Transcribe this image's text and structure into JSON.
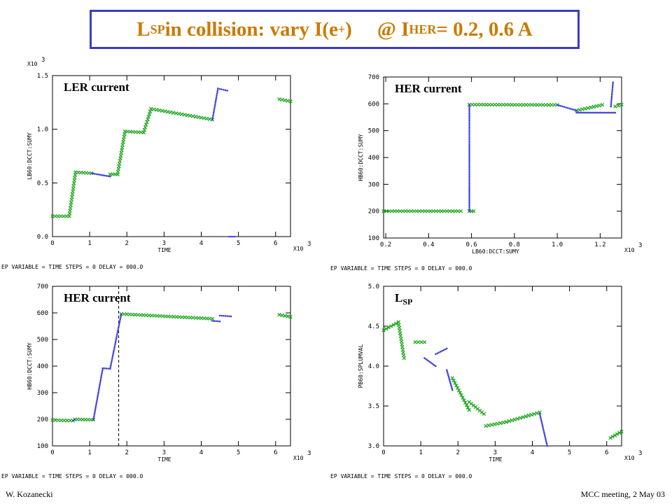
{
  "title": {
    "main": "L",
    "sub1": "SP",
    "mid": " in collision: vary I(e",
    "sup": "+",
    "close": ")",
    "at": "@ I",
    "sub2": "HER",
    "tail": " = 0.2, 0.6 A"
  },
  "footer": {
    "left": "W. Kozanecki",
    "right": "MCC meeting, 2 May 03"
  },
  "chart_data": [
    {
      "type": "scatter",
      "title": "LER current",
      "xlabel": "TIME",
      "ylabel": "LB60:DCCT:SUMY",
      "x_multiplier": "X10",
      "x_exp": "3",
      "y_multiplier": "X10",
      "y_exp": "3",
      "xlim": [
        0,
        6.4
      ],
      "ylim": [
        0,
        1.5
      ],
      "xticks": [
        0,
        1,
        2,
        3,
        4,
        5,
        6
      ],
      "yticks": [
        0.0,
        0.5,
        1.0,
        1.5
      ],
      "ytick_labels": [
        "0.0",
        "0.5",
        "1.0",
        "1.5"
      ],
      "footer_text": "EP VARIABLE = TIME STEPS = 0 DELAY = 000.0",
      "series": [
        {
          "color": "#22a822",
          "segments": [
            [
              [
                0.0,
                0.19
              ],
              [
                0.45,
                0.19
              ]
            ],
            [
              [
                0.45,
                0.19
              ],
              [
                0.62,
                0.6
              ]
            ],
            [
              [
                0.62,
                0.6
              ],
              [
                1.05,
                0.59
              ]
            ],
            [
              [
                1.55,
                0.58
              ],
              [
                1.75,
                0.58
              ]
            ],
            [
              [
                1.75,
                0.58
              ],
              [
                1.95,
                0.98
              ]
            ],
            [
              [
                1.95,
                0.98
              ],
              [
                2.45,
                0.97
              ]
            ],
            [
              [
                2.45,
                0.97
              ],
              [
                2.65,
                1.19
              ]
            ],
            [
              [
                2.65,
                1.19
              ],
              [
                4.3,
                1.09
              ]
            ],
            [
              [
                6.1,
                1.28
              ],
              [
                6.4,
                1.26
              ]
            ]
          ]
        },
        {
          "color": "#4040e0",
          "segments": [
            [
              [
                1.05,
                0.59
              ],
              [
                1.55,
                0.56
              ]
            ],
            [
              [
                4.3,
                1.09
              ],
              [
                4.45,
                1.38
              ]
            ],
            [
              [
                4.45,
                1.38
              ],
              [
                4.7,
                1.36
              ]
            ],
            [
              [
                4.75,
                0.0
              ],
              [
                4.9,
                0.0
              ]
            ]
          ]
        }
      ]
    },
    {
      "type": "scatter",
      "title": "HER current",
      "xlabel": "LB60:DCCT:SUMY",
      "ylabel": "HB60:DCCT:SUMY",
      "x_multiplier": "X10",
      "x_exp": "3",
      "xlim": [
        0.19,
        1.3
      ],
      "ylim": [
        100,
        700
      ],
      "xticks": [
        0.2,
        0.4,
        0.6,
        0.8,
        1.0,
        1.2
      ],
      "yticks": [
        100,
        200,
        300,
        400,
        500,
        600,
        700
      ],
      "xtick_labels": [
        "0.2",
        "0.4",
        "0.6",
        "0.8",
        "1.0",
        "1.2"
      ],
      "footer_text": "EP VARIABLE = TIME STEPS = 0 DELAY = 000.0",
      "series": [
        {
          "color": "#22a822",
          "segments": [
            [
              [
                0.19,
                200
              ],
              [
                0.55,
                200
              ]
            ],
            [
              [
                0.59,
                200
              ],
              [
                0.61,
                200
              ]
            ],
            [
              [
                0.59,
                597
              ],
              [
                0.96,
                596
              ]
            ],
            [
              [
                0.96,
                596
              ],
              [
                1.0,
                596
              ]
            ],
            [
              [
                1.09,
                575
              ],
              [
                1.21,
                596
              ]
            ],
            [
              [
                1.27,
                590
              ],
              [
                1.3,
                597
              ]
            ]
          ]
        },
        {
          "color": "#4040e0",
          "segments": [
            [
              [
                0.59,
                200
              ],
              [
                0.59,
                597
              ]
            ],
            [
              [
                1.0,
                596
              ],
              [
                1.09,
                575
              ]
            ],
            [
              [
                1.09,
                567
              ],
              [
                1.27,
                567
              ]
            ],
            [
              [
                1.25,
                590
              ],
              [
                1.26,
                680
              ]
            ]
          ]
        }
      ]
    },
    {
      "type": "scatter",
      "title": "HER current",
      "xlabel": "TIME",
      "ylabel": "HB60:DCCT:SUMY",
      "x_multiplier": "X10",
      "x_exp": "3",
      "xlim": [
        0,
        6.4
      ],
      "ylim": [
        100,
        700
      ],
      "xticks": [
        0,
        1,
        2,
        3,
        4,
        5,
        6
      ],
      "yticks": [
        100,
        200,
        300,
        400,
        500,
        600,
        700
      ],
      "footer_text": "EP VARIABLE = TIME STEPS = 0 DELAY = 000.0",
      "vline_x": 1.78,
      "series": [
        {
          "color": "#22a822",
          "segments": [
            [
              [
                0.0,
                197
              ],
              [
                0.55,
                195
              ]
            ],
            [
              [
                0.6,
                200
              ],
              [
                1.1,
                198
              ]
            ],
            [
              [
                1.85,
                596
              ],
              [
                4.3,
                578
              ]
            ],
            [
              [
                6.1,
                593
              ],
              [
                6.4,
                585
              ]
            ]
          ]
        },
        {
          "color": "#4040e0",
          "segments": [
            [
              [
                0.55,
                195
              ],
              [
                0.6,
                198
              ]
            ],
            [
              [
                1.1,
                198
              ],
              [
                1.35,
                390
              ]
            ],
            [
              [
                1.35,
                392
              ],
              [
                1.55,
                390
              ]
            ],
            [
              [
                1.55,
                390
              ],
              [
                1.85,
                596
              ]
            ],
            [
              [
                4.3,
                570
              ],
              [
                4.5,
                568
              ]
            ],
            [
              [
                4.5,
                590
              ],
              [
                4.8,
                587
              ]
            ]
          ]
        }
      ]
    },
    {
      "type": "scatter",
      "title_main": "L",
      "title_sub": "SP",
      "xlabel": "TIME",
      "ylabel": "PB60:SPLUMVAL",
      "x_multiplier": "X10",
      "x_exp": "3",
      "xlim": [
        0,
        6.4
      ],
      "ylim": [
        3.0,
        5.0
      ],
      "xticks": [
        0,
        1,
        2,
        3,
        4,
        5,
        6
      ],
      "yticks": [
        3.0,
        3.5,
        4.0,
        4.5,
        5.0
      ],
      "ytick_labels": [
        "3.0",
        "3.5",
        "4.0",
        "4.5",
        "5.0"
      ],
      "footer_text": "EP VARIABLE = TIME STEPS = 0 DELAY = 000.0",
      "series": [
        {
          "color": "#22a822",
          "segments": [
            [
              [
                0.0,
                4.45
              ],
              [
                0.4,
                4.55
              ]
            ],
            [
              [
                0.4,
                4.55
              ],
              [
                0.55,
                4.1
              ]
            ],
            [
              [
                0.85,
                4.3
              ],
              [
                1.1,
                4.3
              ]
            ],
            [
              [
                1.85,
                3.85
              ],
              [
                2.3,
                3.45
              ]
            ],
            [
              [
                2.3,
                3.55
              ],
              [
                2.7,
                3.4
              ]
            ],
            [
              [
                2.75,
                3.25
              ],
              [
                3.3,
                3.3
              ]
            ],
            [
              [
                3.3,
                3.3
              ],
              [
                4.2,
                3.42
              ]
            ],
            [
              [
                6.1,
                3.1
              ],
              [
                6.4,
                3.18
              ]
            ]
          ]
        },
        {
          "color": "#4040e0",
          "segments": [
            [
              [
                1.1,
                4.1
              ],
              [
                1.4,
                4.0
              ]
            ],
            [
              [
                1.4,
                4.15
              ],
              [
                1.7,
                4.22
              ]
            ],
            [
              [
                1.7,
                3.95
              ],
              [
                1.85,
                3.7
              ]
            ],
            [
              [
                4.2,
                3.4
              ],
              [
                4.4,
                3.0
              ]
            ]
          ]
        }
      ]
    }
  ]
}
